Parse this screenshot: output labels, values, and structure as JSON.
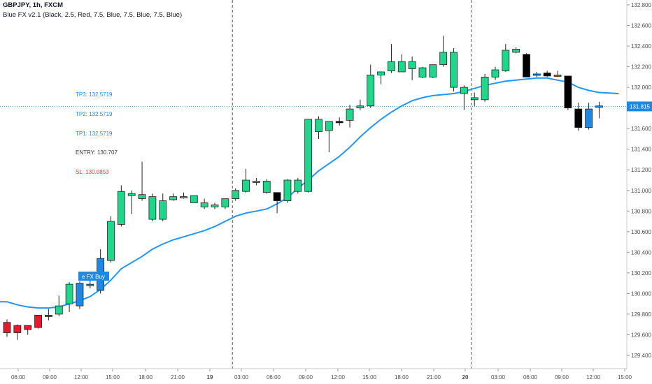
{
  "header": {
    "symbol_line": "GBPJPY, 1h, FXCM",
    "indicator_line": "Blue FX v2.1 (Black, 2.5, Red, 7.5, Blue, 7.5, Blue, 7.5, Blue)"
  },
  "colors": {
    "up": "#1fd68b",
    "down_red": "#e8192c",
    "blue": "#1e88e5",
    "black": "#000000",
    "ma_line": "#2196f3",
    "price_line": "#2196f3",
    "sl_red": "#e53935"
  },
  "chart_data": {
    "type": "candlestick",
    "symbol": "GBPJPY",
    "timeframe": "1h",
    "x_tick_labels": [
      "06:00",
      "09:00",
      "12:00",
      "15:00",
      "18:00",
      "21:00",
      "19",
      "03:00",
      "06:00",
      "09:00",
      "12:00",
      "15:00",
      "18:00",
      "21:00",
      "20",
      "03:00",
      "06:00",
      "09:00",
      "12:00",
      "15:00"
    ],
    "y_ticks": [
      129.4,
      129.6,
      129.8,
      130.0,
      130.2,
      130.4,
      130.6,
      130.8,
      131.0,
      131.2,
      131.4,
      131.6,
      131.8,
      132.0,
      132.2,
      132.4,
      132.6,
      132.8
    ],
    "y_range": [
      129.33,
      132.87
    ],
    "last_price": 131.815,
    "last_price_label": "131.815",
    "candles": [
      {
        "o": 129.72,
        "h": 129.75,
        "l": 129.58,
        "c": 129.62,
        "color": "red"
      },
      {
        "o": 129.69,
        "h": 129.7,
        "l": 129.55,
        "c": 129.62,
        "color": "red"
      },
      {
        "o": 129.65,
        "h": 129.69,
        "l": 129.6,
        "c": 129.69,
        "color": "red"
      },
      {
        "o": 129.67,
        "h": 129.79,
        "l": 129.66,
        "c": 129.79,
        "color": "red"
      },
      {
        "o": 129.79,
        "h": 129.85,
        "l": 129.74,
        "c": 129.78,
        "color": "red"
      },
      {
        "o": 129.8,
        "h": 129.98,
        "l": 129.78,
        "c": 129.88,
        "color": "green"
      },
      {
        "o": 129.9,
        "h": 130.11,
        "l": 129.82,
        "c": 130.09,
        "color": "green"
      },
      {
        "o": 129.88,
        "h": 130.12,
        "l": 129.85,
        "c": 130.1,
        "color": "blue"
      },
      {
        "o": 130.09,
        "h": 130.14,
        "l": 130.05,
        "c": 130.09,
        "color": "blue"
      },
      {
        "o": 130.03,
        "h": 130.43,
        "l": 130.0,
        "c": 130.34,
        "color": "blue"
      },
      {
        "o": 130.32,
        "h": 130.75,
        "l": 130.3,
        "c": 130.7,
        "color": "green"
      },
      {
        "o": 130.67,
        "h": 131.05,
        "l": 130.65,
        "c": 130.99,
        "color": "green"
      },
      {
        "o": 130.97,
        "h": 131.0,
        "l": 130.77,
        "c": 130.95,
        "color": "green"
      },
      {
        "o": 130.96,
        "h": 131.28,
        "l": 130.9,
        "c": 130.92,
        "color": "green"
      },
      {
        "o": 130.94,
        "h": 130.97,
        "l": 130.7,
        "c": 130.72,
        "color": "green"
      },
      {
        "o": 130.72,
        "h": 130.97,
        "l": 130.7,
        "c": 130.9,
        "color": "green"
      },
      {
        "o": 130.91,
        "h": 130.97,
        "l": 130.9,
        "c": 130.94,
        "color": "green"
      },
      {
        "o": 130.94,
        "h": 130.98,
        "l": 130.92,
        "c": 130.94,
        "color": "green"
      },
      {
        "o": 130.95,
        "h": 130.95,
        "l": 130.88,
        "c": 130.88,
        "color": "green"
      },
      {
        "o": 130.88,
        "h": 130.92,
        "l": 130.82,
        "c": 130.84,
        "color": "green"
      },
      {
        "o": 130.84,
        "h": 130.88,
        "l": 130.82,
        "c": 130.86,
        "color": "green"
      },
      {
        "o": 130.84,
        "h": 130.92,
        "l": 130.82,
        "c": 130.92,
        "color": "green"
      },
      {
        "o": 130.92,
        "h": 131.02,
        "l": 130.9,
        "c": 131.0,
        "color": "green"
      },
      {
        "o": 130.99,
        "h": 131.21,
        "l": 130.98,
        "c": 131.1,
        "color": "green"
      },
      {
        "o": 131.08,
        "h": 131.12,
        "l": 131.05,
        "c": 131.09,
        "color": "green"
      },
      {
        "o": 131.09,
        "h": 131.11,
        "l": 130.97,
        "c": 130.98,
        "color": "green"
      },
      {
        "o": 130.98,
        "h": 130.98,
        "l": 130.78,
        "c": 130.9,
        "color": "black"
      },
      {
        "o": 130.9,
        "h": 131.11,
        "l": 130.88,
        "c": 131.1,
        "color": "green"
      },
      {
        "o": 131.1,
        "h": 131.12,
        "l": 130.97,
        "c": 130.99,
        "color": "green"
      },
      {
        "o": 130.99,
        "h": 131.69,
        "l": 130.98,
        "c": 131.69,
        "color": "green"
      },
      {
        "o": 131.69,
        "h": 131.72,
        "l": 131.5,
        "c": 131.57,
        "color": "green"
      },
      {
        "o": 131.58,
        "h": 131.67,
        "l": 131.37,
        "c": 131.67,
        "color": "green"
      },
      {
        "o": 131.67,
        "h": 131.71,
        "l": 131.63,
        "c": 131.67,
        "color": "black"
      },
      {
        "o": 131.68,
        "h": 131.83,
        "l": 131.61,
        "c": 131.79,
        "color": "green"
      },
      {
        "o": 131.8,
        "h": 131.88,
        "l": 131.78,
        "c": 131.82,
        "color": "green"
      },
      {
        "o": 131.82,
        "h": 132.22,
        "l": 131.8,
        "c": 132.12,
        "color": "green"
      },
      {
        "o": 132.12,
        "h": 132.15,
        "l": 132.03,
        "c": 132.15,
        "color": "green"
      },
      {
        "o": 132.16,
        "h": 132.42,
        "l": 132.14,
        "c": 132.25,
        "color": "green"
      },
      {
        "o": 132.25,
        "h": 132.32,
        "l": 132.18,
        "c": 132.15,
        "color": "green"
      },
      {
        "o": 132.25,
        "h": 132.3,
        "l": 132.07,
        "c": 132.18,
        "color": "green"
      },
      {
        "o": 132.1,
        "h": 132.2,
        "l": 132.09,
        "c": 132.19,
        "color": "green"
      },
      {
        "o": 132.1,
        "h": 132.22,
        "l": 132.09,
        "c": 132.22,
        "color": "green"
      },
      {
        "o": 132.22,
        "h": 132.5,
        "l": 132.2,
        "c": 132.34,
        "color": "green"
      },
      {
        "o": 132.34,
        "h": 132.38,
        "l": 131.96,
        "c": 132.0,
        "color": "green"
      },
      {
        "o": 131.94,
        "h": 132.02,
        "l": 131.78,
        "c": 132.0,
        "color": "green"
      },
      {
        "o": 131.9,
        "h": 131.95,
        "l": 131.82,
        "c": 131.88,
        "color": "green"
      },
      {
        "o": 131.88,
        "h": 132.13,
        "l": 131.86,
        "c": 132.1,
        "color": "green"
      },
      {
        "o": 132.1,
        "h": 132.2,
        "l": 132.07,
        "c": 132.17,
        "color": "green"
      },
      {
        "o": 132.16,
        "h": 132.42,
        "l": 132.15,
        "c": 132.36,
        "color": "green"
      },
      {
        "o": 132.34,
        "h": 132.39,
        "l": 132.33,
        "c": 132.37,
        "color": "green"
      },
      {
        "o": 132.32,
        "h": 132.33,
        "l": 132.1,
        "c": 132.1,
        "color": "black"
      },
      {
        "o": 132.12,
        "h": 132.15,
        "l": 132.1,
        "c": 132.13,
        "color": "blue"
      },
      {
        "o": 132.14,
        "h": 132.16,
        "l": 132.1,
        "c": 132.11,
        "color": "black"
      },
      {
        "o": 132.12,
        "h": 132.16,
        "l": 132.1,
        "c": 132.12,
        "color": "blue"
      },
      {
        "o": 132.11,
        "h": 132.11,
        "l": 131.78,
        "c": 131.8,
        "color": "black"
      },
      {
        "o": 131.79,
        "h": 131.85,
        "l": 131.58,
        "c": 131.61,
        "color": "black"
      },
      {
        "o": 131.61,
        "h": 131.85,
        "l": 131.59,
        "c": 131.79,
        "color": "blue"
      },
      {
        "o": 131.82,
        "h": 131.86,
        "l": 131.7,
        "c": 131.82,
        "color": "blue"
      }
    ],
    "ma_line": [
      129.92,
      129.89,
      129.87,
      129.86,
      129.86,
      129.87,
      129.9,
      129.93,
      129.97,
      130.04,
      130.13,
      130.24,
      130.3,
      130.36,
      130.43,
      130.48,
      130.52,
      130.55,
      130.58,
      130.61,
      130.65,
      130.7,
      130.75,
      130.78,
      130.8,
      130.82,
      130.87,
      130.93,
      131.02,
      131.1,
      131.19,
      131.26,
      131.33,
      131.42,
      131.52,
      131.61,
      131.69,
      131.76,
      131.82,
      131.87,
      131.9,
      131.92,
      131.93,
      131.94,
      131.96,
      131.99,
      132.02,
      132.04,
      132.06,
      132.07,
      132.08,
      132.09,
      132.09,
      132.07,
      132.05,
      132.0,
      131.97,
      131.95
    ],
    "ma_extend": 131.94,
    "session_dividers": [
      21.7,
      44.7
    ],
    "annotations": {
      "tp3": "TP3: 132.5719",
      "tp2": "TP2: 132.5719",
      "tp1": "TP1: 132.5719",
      "entry": "ENTRY: 130.707",
      "sl": "SL: 130.0853"
    },
    "buy_label": "e FX Buy"
  }
}
